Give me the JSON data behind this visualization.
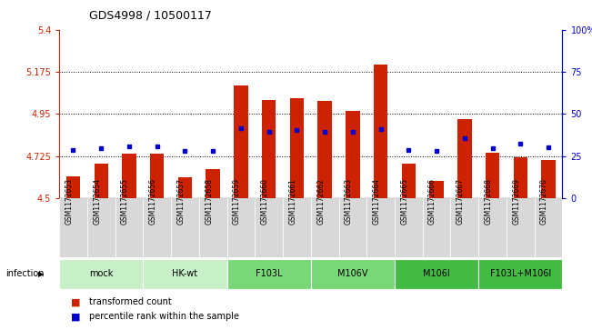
{
  "title": "GDS4998 / 10500117",
  "samples": [
    "GSM1172653",
    "GSM1172654",
    "GSM1172655",
    "GSM1172656",
    "GSM1172657",
    "GSM1172658",
    "GSM1172659",
    "GSM1172660",
    "GSM1172661",
    "GSM1172662",
    "GSM1172663",
    "GSM1172664",
    "GSM1172665",
    "GSM1172666",
    "GSM1172667",
    "GSM1172668",
    "GSM1172669",
    "GSM1172670"
  ],
  "red_values": [
    4.615,
    4.685,
    4.735,
    4.735,
    4.61,
    4.655,
    5.1,
    5.025,
    5.035,
    5.02,
    4.965,
    5.215,
    4.685,
    4.59,
    4.92,
    4.74,
    4.72,
    4.705
  ],
  "blue_values": [
    4.755,
    4.765,
    4.775,
    4.775,
    4.75,
    4.75,
    4.875,
    4.855,
    4.865,
    4.855,
    4.855,
    4.87,
    4.755,
    4.75,
    4.82,
    4.765,
    4.79,
    4.77
  ],
  "ylim": [
    4.5,
    5.4
  ],
  "yticks_left": [
    4.5,
    4.725,
    4.95,
    5.175,
    5.4
  ],
  "dotted_lines": [
    4.725,
    4.95,
    5.175
  ],
  "yticks_right_pct": [
    0,
    25,
    50,
    75,
    100
  ],
  "group_info": [
    {
      "label": "mock",
      "start": 0,
      "end": 2,
      "color": "#c8f0c8"
    },
    {
      "label": "HK-wt",
      "start": 3,
      "end": 5,
      "color": "#c8f0c8"
    },
    {
      "label": "F103L",
      "start": 6,
      "end": 8,
      "color": "#78d878"
    },
    {
      "label": "M106V",
      "start": 9,
      "end": 11,
      "color": "#78d878"
    },
    {
      "label": "M106I",
      "start": 12,
      "end": 14,
      "color": "#44bb44"
    },
    {
      "label": "F103L+M106I",
      "start": 15,
      "end": 17,
      "color": "#44bb44"
    }
  ],
  "bar_color": "#cc2200",
  "dot_color": "#0000cc",
  "bar_width": 0.5,
  "left_axis_color": "#cc2200",
  "right_axis_color": "#0000cc",
  "infection_label": "infection",
  "legend": [
    {
      "color": "#cc2200",
      "label": "transformed count"
    },
    {
      "color": "#0000cc",
      "label": "percentile rank within the sample"
    }
  ]
}
